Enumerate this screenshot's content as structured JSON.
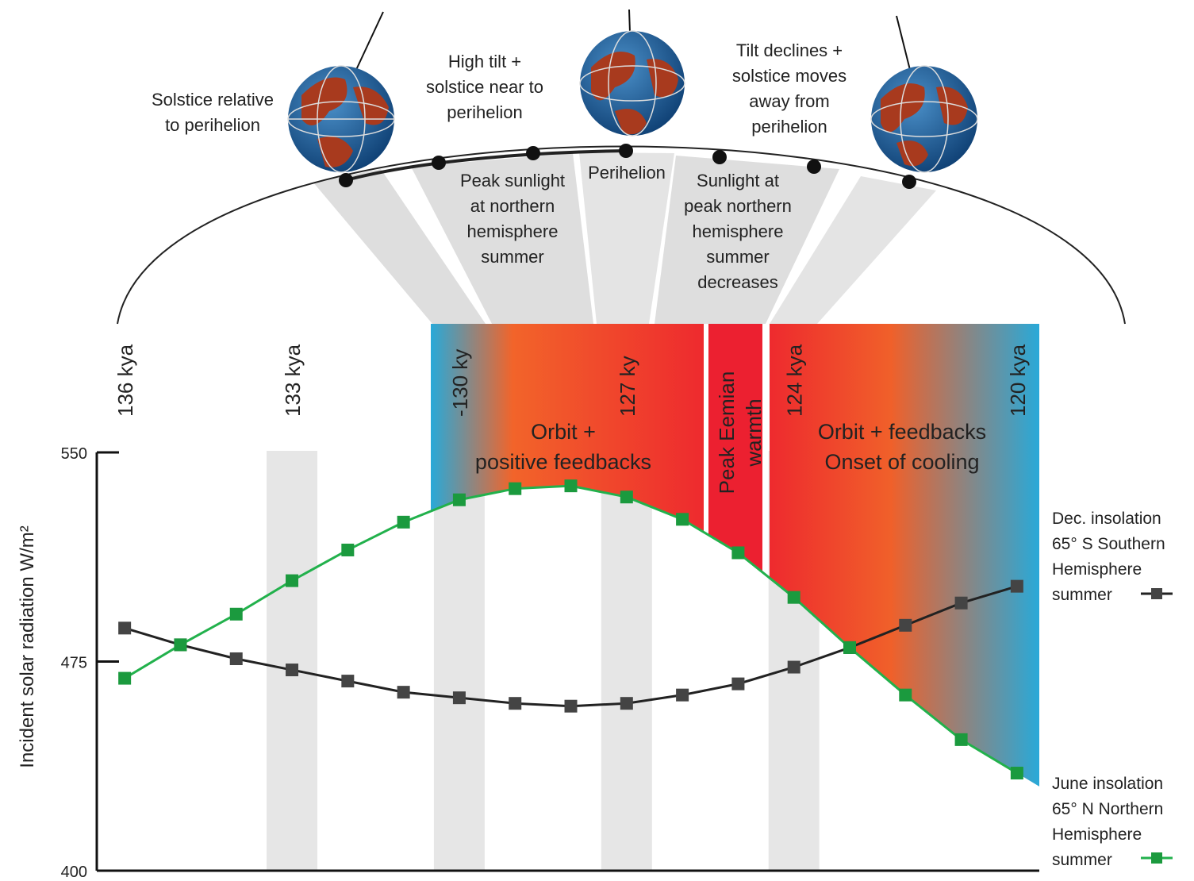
{
  "chart_data": {
    "type": "line",
    "y_label": "Incident solar radiation W/m²",
    "x": [
      136,
      135,
      134,
      133,
      132,
      131,
      130,
      129,
      128,
      127,
      126,
      125,
      124,
      123,
      122,
      121,
      120
    ],
    "xlim": [
      136.5,
      119.6
    ],
    "xticks": [
      {
        "value": 136,
        "label": "136 kya"
      },
      {
        "value": 133,
        "label": "133 kya"
      },
      {
        "value": 130,
        "label": "-130 ky"
      },
      {
        "value": 127,
        "label": "127 ky"
      },
      {
        "value": 124,
        "label": "124 kya"
      },
      {
        "value": 120,
        "label": "120 kya"
      }
    ],
    "ylim": [
      400,
      550
    ],
    "yticks": [
      400,
      475,
      550
    ],
    "series": [
      {
        "name": "Dec. insolation 65° S Southern Hemisphere summer",
        "color": "#222222",
        "marker_color": "#444444",
        "values": [
          487,
          481,
          476,
          472,
          468,
          464,
          462,
          460,
          459,
          460,
          463,
          467,
          473,
          480,
          488,
          496,
          502
        ]
      },
      {
        "name": "June insolation 65° N Northern Hemisphere summer",
        "color": "#22b14c",
        "marker_color": "#1b9a3e",
        "values": [
          469,
          481,
          492,
          504,
          515,
          525,
          533,
          537,
          538,
          534,
          526,
          514,
          498,
          480,
          463,
          447,
          435
        ]
      }
    ],
    "annotations": [
      {
        "lines": [
          "Solstice relative",
          "to perihelion"
        ]
      },
      {
        "lines": [
          "High tilt +",
          "solstice near to",
          "perihelion"
        ]
      },
      {
        "lines": [
          "Tilt declines +",
          "solstice moves",
          "away from",
          "perihelion"
        ]
      },
      {
        "lines": [
          "Peak sunlight",
          "at northern",
          "hemisphere",
          "summer"
        ]
      },
      {
        "lines": [
          "Perihelion"
        ]
      },
      {
        "lines": [
          "Sunlight at",
          "peak northern",
          "hemisphere",
          "summer",
          "decreases"
        ]
      },
      {
        "lines": [
          "Orbit +",
          "positive feedbacks"
        ]
      },
      {
        "lines": [
          "Peak Eemian",
          "warmth"
        ]
      },
      {
        "lines": [
          "Orbit + feedbacks",
          "Onset of cooling"
        ]
      }
    ]
  }
}
